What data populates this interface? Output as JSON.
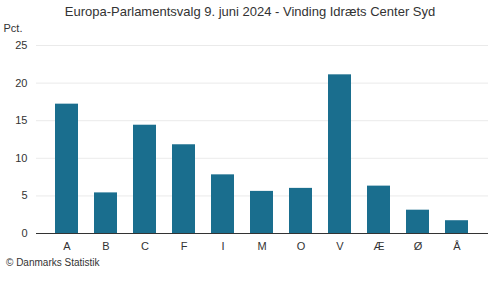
{
  "chart_data": {
    "type": "bar",
    "title": "Europa-Parlamentsvalg 9. juni 2024 - Vinding Idræts Center Syd",
    "categories": [
      "A",
      "B",
      "C",
      "F",
      "I",
      "M",
      "O",
      "V",
      "Æ",
      "Ø",
      "Å"
    ],
    "values": [
      17.2,
      5.4,
      14.4,
      11.8,
      7.8,
      5.6,
      6.0,
      21.1,
      6.3,
      3.1,
      1.7
    ],
    "color": "#1a6e8e",
    "ylabel": "Pct.",
    "ylim": [
      0,
      25
    ],
    "yticks": [
      0,
      5,
      10,
      15,
      20,
      25
    ],
    "grid": true,
    "caption": "© Danmarks Statistik"
  }
}
